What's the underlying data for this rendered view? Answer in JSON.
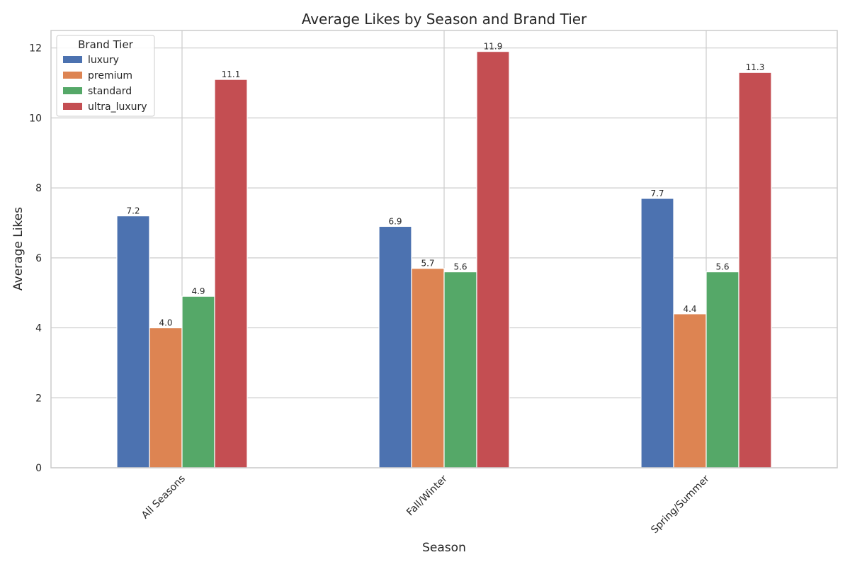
{
  "chart_data": {
    "type": "bar",
    "title": "Average Likes by Season and Brand Tier",
    "xlabel": "Season",
    "ylabel": "Average Likes",
    "categories": [
      "All Seasons",
      "Fall/Winter",
      "Spring/Summer"
    ],
    "series": [
      {
        "name": "luxury",
        "color": "#4c72b0",
        "values": [
          7.2,
          6.9,
          7.7
        ]
      },
      {
        "name": "premium",
        "color": "#dd8452",
        "values": [
          4.0,
          5.7,
          4.4
        ]
      },
      {
        "name": "standard",
        "color": "#55a868",
        "values": [
          4.9,
          5.6,
          5.6
        ]
      },
      {
        "name": "ultra_luxury",
        "color": "#c44e52",
        "values": [
          11.1,
          11.9,
          11.3
        ]
      }
    ],
    "ylim": [
      0,
      12.5
    ],
    "yticks": [
      0,
      2,
      4,
      6,
      8,
      10,
      12
    ],
    "grid": true,
    "legend": {
      "title": "Brand Tier",
      "position": "top-left"
    }
  }
}
